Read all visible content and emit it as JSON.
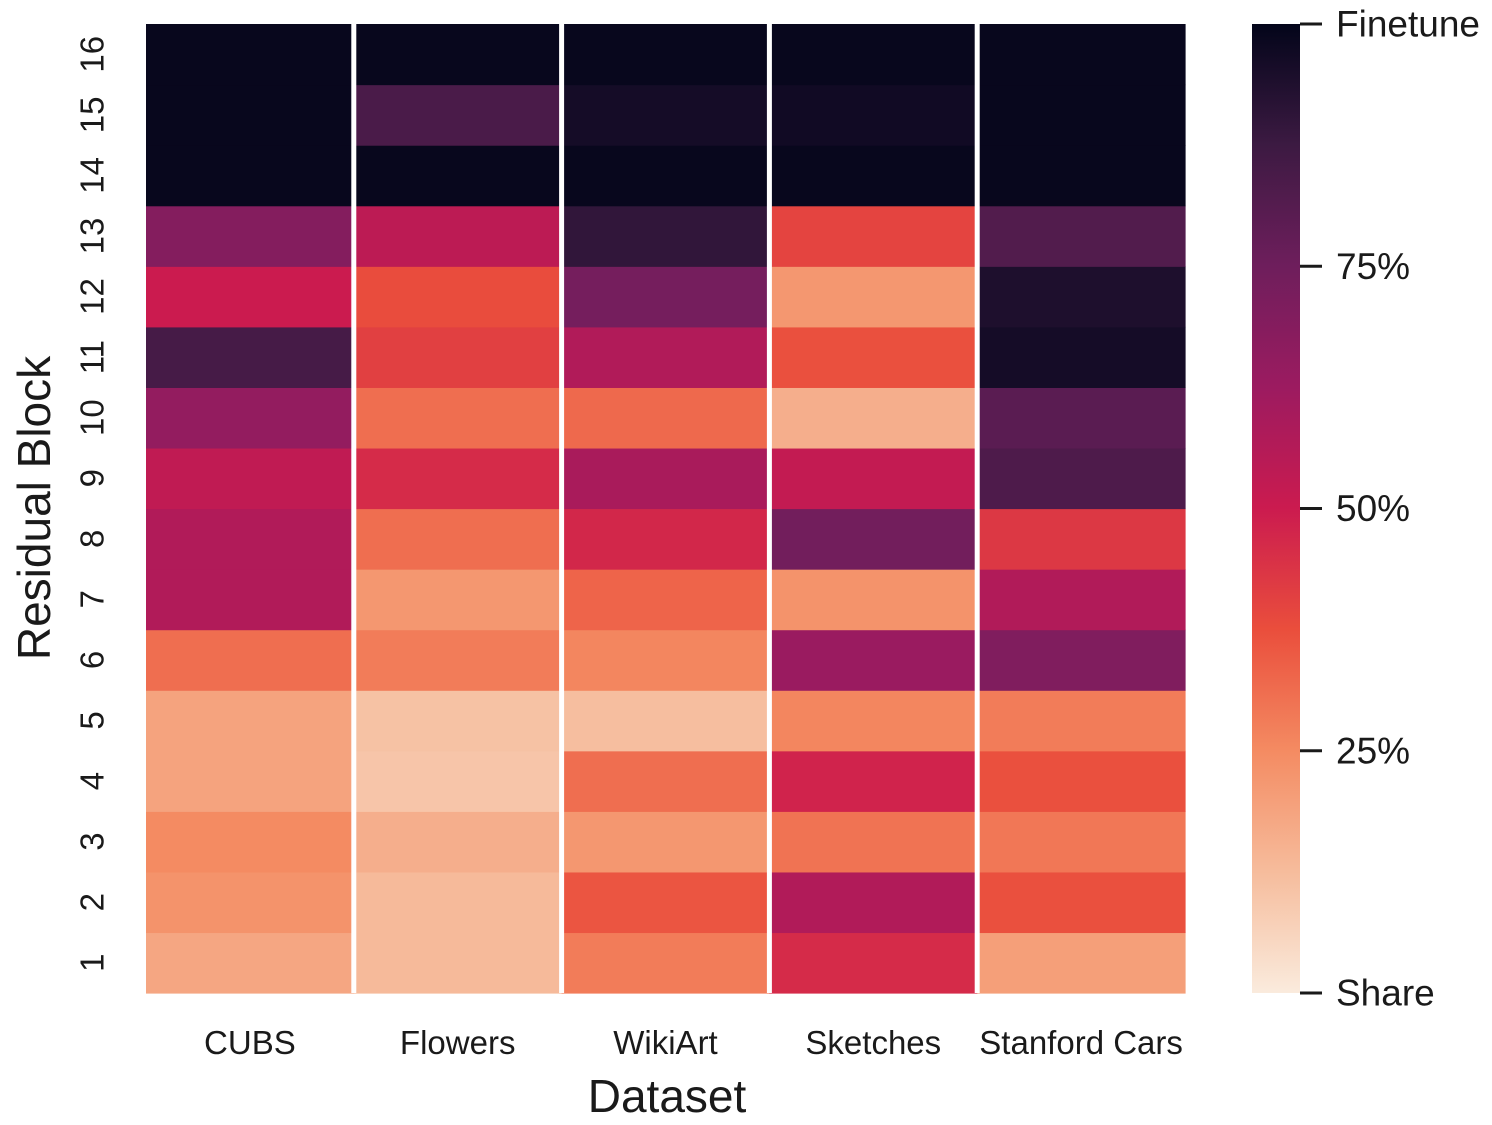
{
  "chart_data": {
    "type": "heatmap",
    "title": "",
    "xlabel": "Dataset",
    "ylabel": "Residual Block",
    "x_categories": [
      "CUBS",
      "Flowers",
      "WikiArt",
      "Sketches",
      "Stanford Cars"
    ],
    "y_categories": [
      "1",
      "2",
      "3",
      "4",
      "5",
      "6",
      "7",
      "8",
      "9",
      "10",
      "11",
      "12",
      "13",
      "14",
      "15",
      "16"
    ],
    "value_range": [
      0,
      100
    ],
    "values": [
      [
        18,
        13,
        28,
        46,
        20
      ],
      [
        23,
        13,
        36,
        57,
        37
      ],
      [
        25,
        16,
        22,
        30,
        29
      ],
      [
        19,
        10,
        31,
        48,
        37
      ],
      [
        19,
        11,
        12,
        26,
        28
      ],
      [
        31,
        28,
        26,
        63,
        70
      ],
      [
        57,
        22,
        33,
        23,
        57
      ],
      [
        57,
        31,
        47,
        74,
        43
      ],
      [
        53,
        46,
        59,
        52,
        83
      ],
      [
        65,
        31,
        32,
        16,
        80
      ],
      [
        85,
        41,
        57,
        37,
        96
      ],
      [
        50,
        38,
        73,
        22,
        94
      ],
      [
        69,
        54,
        90,
        40,
        82
      ],
      [
        99,
        99,
        99,
        99,
        99
      ],
      [
        99,
        84,
        96,
        97,
        99
      ],
      [
        99,
        99,
        99,
        99,
        99
      ]
    ],
    "colorbar": {
      "ticks": [
        {
          "value": 100,
          "label": "Finetune"
        },
        {
          "value": 75,
          "label": "75%"
        },
        {
          "value": 50,
          "label": "50%"
        },
        {
          "value": 25,
          "label": "25%"
        },
        {
          "value": 0,
          "label": "Share"
        }
      ],
      "colormap": "rocket_r"
    }
  }
}
